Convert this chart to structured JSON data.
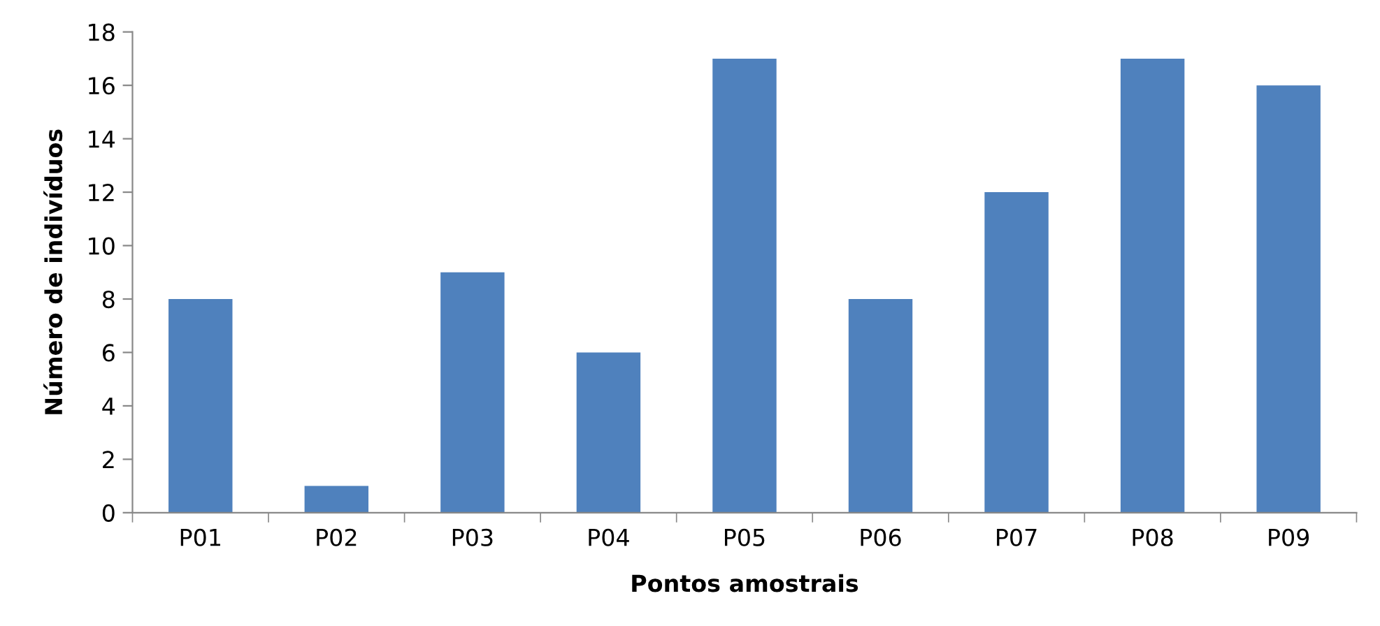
{
  "chart_data": {
    "type": "bar",
    "xlabel": "Pontos amostrais",
    "ylabel": "Número de indivíduos",
    "categories": [
      "P01",
      "P02",
      "P03",
      "P04",
      "P05",
      "P06",
      "P07",
      "P08",
      "P09"
    ],
    "values": [
      8,
      1,
      9,
      6,
      17,
      8,
      12,
      17,
      16
    ],
    "color": "#4f81bd",
    "ylim": [
      0,
      18
    ],
    "yticks": [
      0,
      2,
      4,
      6,
      8,
      10,
      12,
      14,
      16,
      18
    ],
    "grid": false,
    "legend": false
  }
}
